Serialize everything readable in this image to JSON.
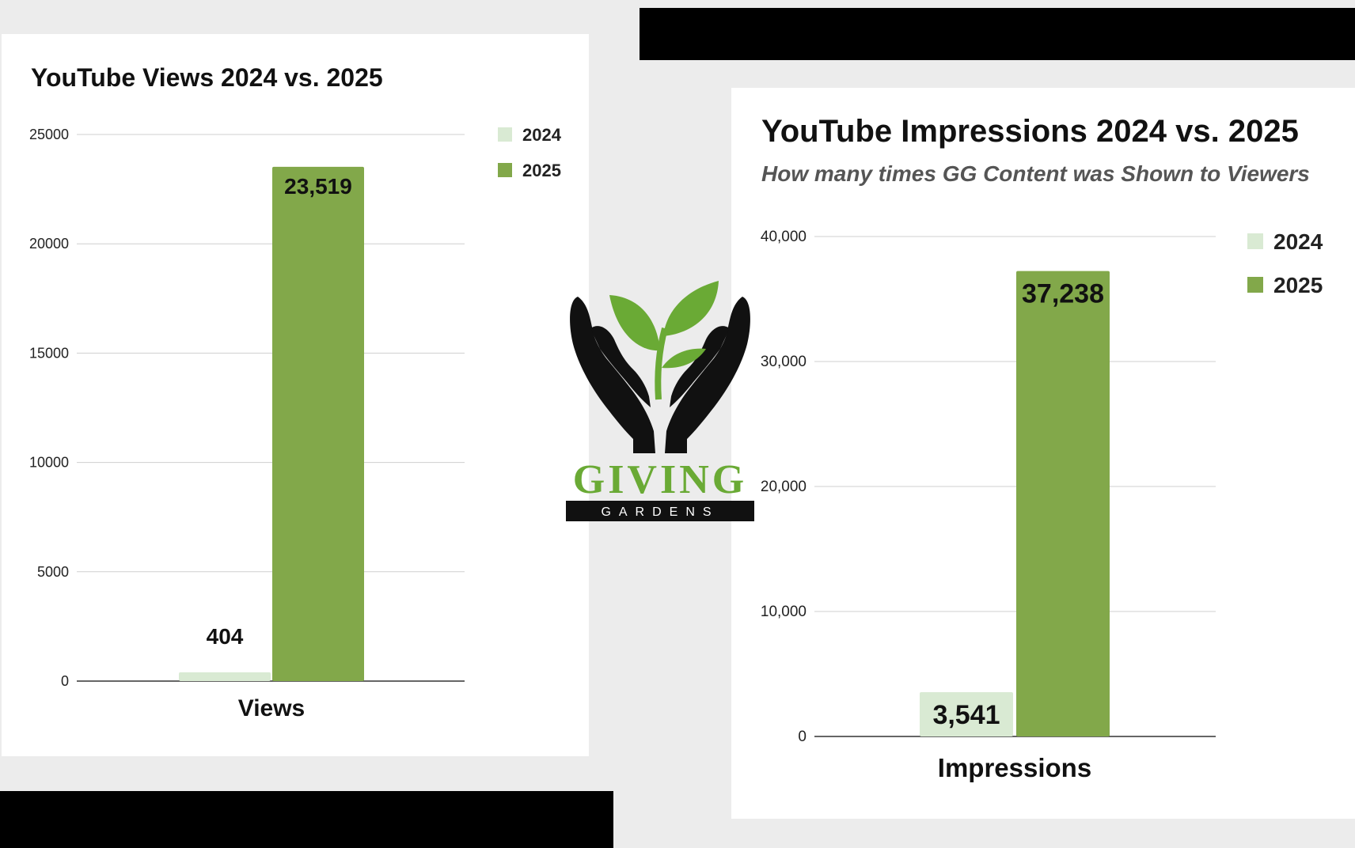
{
  "colors": {
    "series_2024": "#d9ead3",
    "series_2025": "#82a84a",
    "logo_green": "#6aaa35",
    "logo_black": "#111111"
  },
  "logo": {
    "text": "GIVING",
    "subtext": "GARDENS",
    "icon": "hands-sprout-icon"
  },
  "chart_data": [
    {
      "type": "bar",
      "title": "YouTube Views 2024 vs. 2025",
      "subtitle": "",
      "categories": [
        "Views"
      ],
      "series": [
        {
          "name": "2024",
          "values": [
            404
          ],
          "label": "404"
        },
        {
          "name": "2025",
          "values": [
            23519
          ],
          "label": "23,519"
        }
      ],
      "ylim": [
        0,
        25000
      ],
      "yticks": [
        0,
        5000,
        10000,
        15000,
        20000,
        25000
      ],
      "ytick_labels": [
        "0",
        "5000",
        "10000",
        "15000",
        "20000",
        "25000"
      ],
      "grid": true,
      "legend": "top-right"
    },
    {
      "type": "bar",
      "title": "YouTube Impressions 2024 vs. 2025",
      "subtitle": "How many times GG Content was Shown to Viewers",
      "categories": [
        "Impressions"
      ],
      "series": [
        {
          "name": "2024",
          "values": [
            3541
          ],
          "label": "3,541"
        },
        {
          "name": "2025",
          "values": [
            37238
          ],
          "label": "37,238"
        }
      ],
      "ylim": [
        0,
        40000
      ],
      "yticks": [
        0,
        10000,
        20000,
        30000,
        40000
      ],
      "ytick_labels": [
        "0",
        "10,000",
        "20,000",
        "30,000",
        "40,000"
      ],
      "grid": true,
      "legend": "top-right"
    }
  ]
}
